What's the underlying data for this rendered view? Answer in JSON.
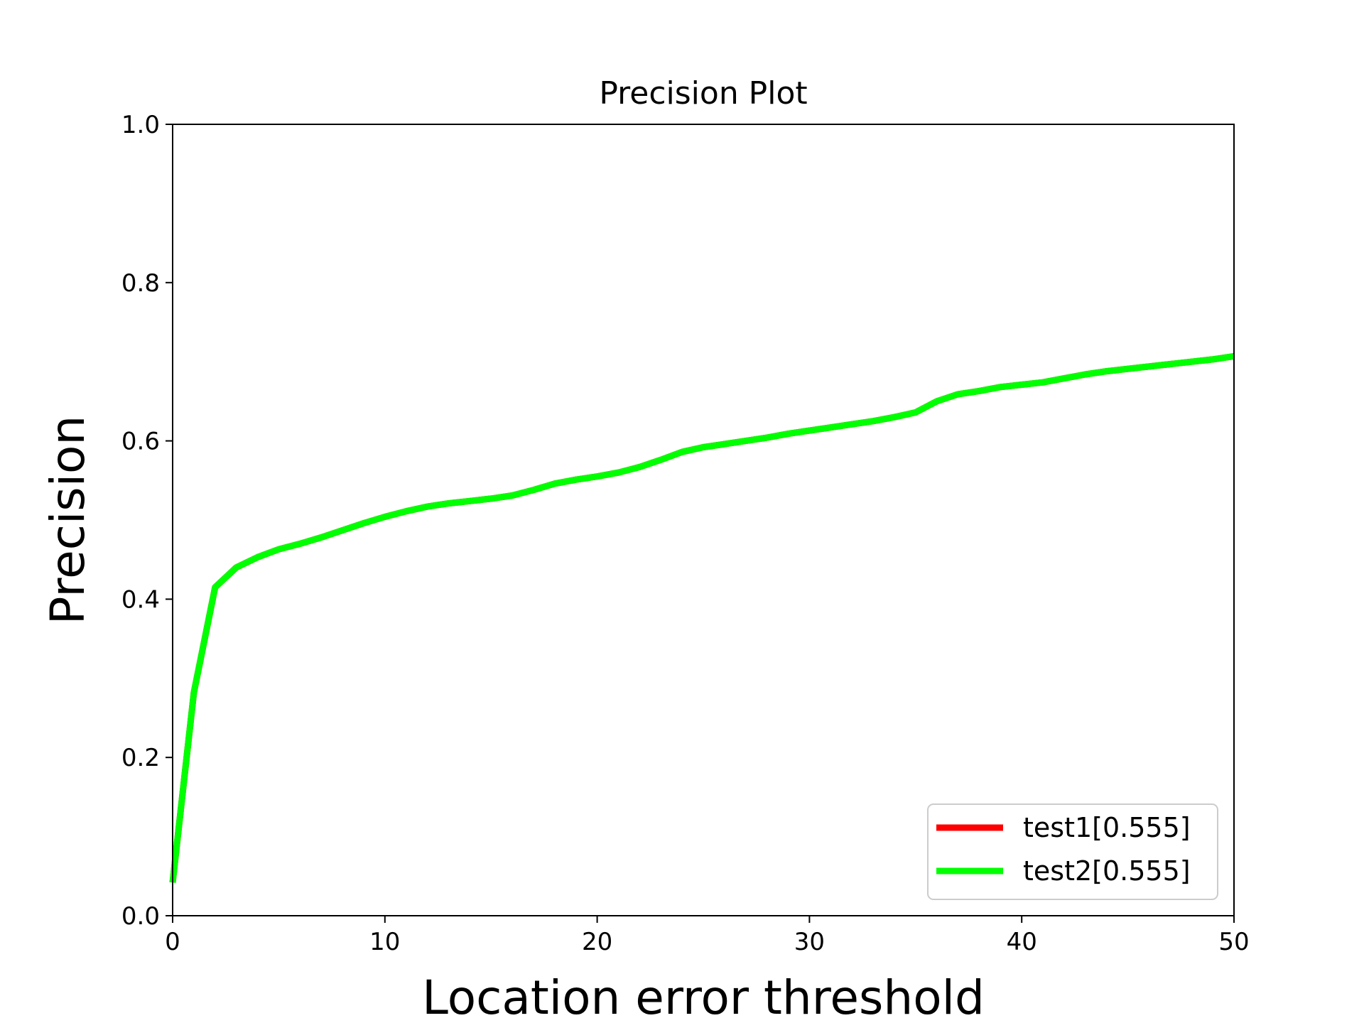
{
  "chart_data": {
    "type": "line",
    "title": "Precision Plot",
    "xlabel": "Location error threshold",
    "ylabel": "Precision",
    "xlim": [
      0,
      50
    ],
    "ylim": [
      0,
      1.0
    ],
    "xticks": [
      "0",
      "10",
      "20",
      "30",
      "40",
      "50"
    ],
    "yticks": [
      "0.0",
      "0.2",
      "0.4",
      "0.6",
      "0.8",
      "1.0"
    ],
    "grid": false,
    "legend_position": "lower-right",
    "x": [
      0,
      1,
      2,
      3,
      4,
      5,
      6,
      7,
      8,
      9,
      10,
      11,
      12,
      13,
      14,
      15,
      16,
      17,
      18,
      19,
      20,
      21,
      22,
      23,
      24,
      25,
      26,
      27,
      28,
      29,
      30,
      31,
      32,
      33,
      34,
      35,
      36,
      37,
      38,
      39,
      40,
      41,
      42,
      43,
      44,
      45,
      46,
      47,
      48,
      49,
      50
    ],
    "series": [
      {
        "name": "test1[0.555]",
        "color": "#ff0000",
        "values": [
          0.042,
          0.282,
          0.415,
          0.44,
          0.453,
          0.463,
          0.47,
          0.478,
          0.487,
          0.496,
          0.504,
          0.511,
          0.517,
          0.521,
          0.524,
          0.527,
          0.531,
          0.538,
          0.546,
          0.551,
          0.555,
          0.56,
          0.567,
          0.576,
          0.586,
          0.592,
          0.596,
          0.6,
          0.604,
          0.609,
          0.613,
          0.617,
          0.621,
          0.625,
          0.63,
          0.636,
          0.65,
          0.659,
          0.663,
          0.668,
          0.671,
          0.674,
          0.679,
          0.684,
          0.688,
          0.691,
          0.694,
          0.697,
          0.7,
          0.703,
          0.707
        ]
      },
      {
        "name": "test2[0.555]",
        "color": "#00ff00",
        "values": [
          0.042,
          0.282,
          0.415,
          0.44,
          0.453,
          0.463,
          0.47,
          0.478,
          0.487,
          0.496,
          0.504,
          0.511,
          0.517,
          0.521,
          0.524,
          0.527,
          0.531,
          0.538,
          0.546,
          0.551,
          0.555,
          0.56,
          0.567,
          0.576,
          0.586,
          0.592,
          0.596,
          0.6,
          0.604,
          0.609,
          0.613,
          0.617,
          0.621,
          0.625,
          0.63,
          0.636,
          0.65,
          0.659,
          0.663,
          0.668,
          0.671,
          0.674,
          0.679,
          0.684,
          0.688,
          0.691,
          0.694,
          0.697,
          0.7,
          0.703,
          0.707
        ]
      }
    ]
  }
}
